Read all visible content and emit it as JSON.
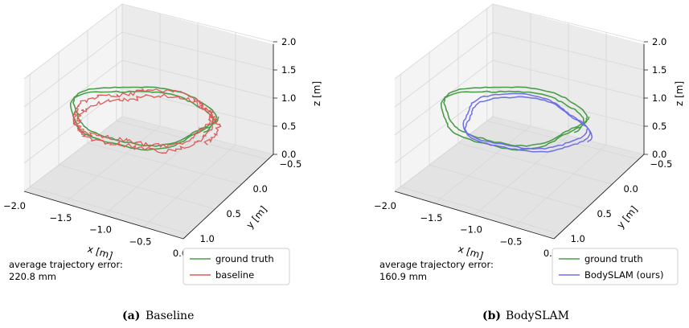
{
  "colors": {
    "ground_truth": "#4a9e4a",
    "baseline": "#e05a5a",
    "bodyslam": "#6f6fe6",
    "pane": "#f2f2f2",
    "grid": "#d6d6d6"
  },
  "chart_data": [
    {
      "type": "line",
      "projection": "3d",
      "xlabel": "x [m]",
      "ylabel": "y [m]",
      "zlabel": "z [m]",
      "xticks": [
        "−2.0",
        "−1.5",
        "−1.0",
        "−0.5",
        "0.0"
      ],
      "yticks": [
        "−0.5",
        "0.0",
        "0.5",
        "1.0"
      ],
      "zticks": [
        "0.0",
        "0.5",
        "1.0",
        "1.5",
        "2.0"
      ],
      "xlim": [
        -2.0,
        0.0
      ],
      "ylim": [
        -0.6,
        1.1
      ],
      "zlim": [
        0.0,
        2.0
      ],
      "grid": true,
      "legend_position": "lower-right",
      "series": [
        {
          "name": "ground truth",
          "color_key": "ground_truth",
          "shape": "two loops, smooth"
        },
        {
          "name": "baseline",
          "color_key": "baseline",
          "shape": "noisy drifting loops"
        }
      ],
      "error_label": "average trajectory error:",
      "error_value": "220.8 mm",
      "caption_label": "(a)",
      "caption_text": "Baseline"
    },
    {
      "type": "line",
      "projection": "3d",
      "xlabel": "x [m]",
      "ylabel": "y [m]",
      "zlabel": "z [m]",
      "xticks": [
        "−2.0",
        "−1.5",
        "−1.0",
        "−0.5",
        "0.0"
      ],
      "yticks": [
        "−0.5",
        "0.0",
        "0.5",
        "1.0"
      ],
      "zticks": [
        "0.0",
        "0.5",
        "1.0",
        "1.5",
        "2.0"
      ],
      "xlim": [
        -2.0,
        0.0
      ],
      "ylim": [
        -0.6,
        1.1
      ],
      "zlim": [
        0.0,
        2.0
      ],
      "grid": true,
      "legend_position": "lower-right",
      "series": [
        {
          "name": "ground truth",
          "color_key": "ground_truth",
          "shape": "two loops, smooth"
        },
        {
          "name": "BodySLAM (ours)",
          "color_key": "bodyslam",
          "shape": "two loops, smooth, slightly offset"
        }
      ],
      "error_label": "average trajectory error:",
      "error_value": "160.9 mm",
      "caption_label": "(b)",
      "caption_text": "BodySLAM"
    }
  ]
}
